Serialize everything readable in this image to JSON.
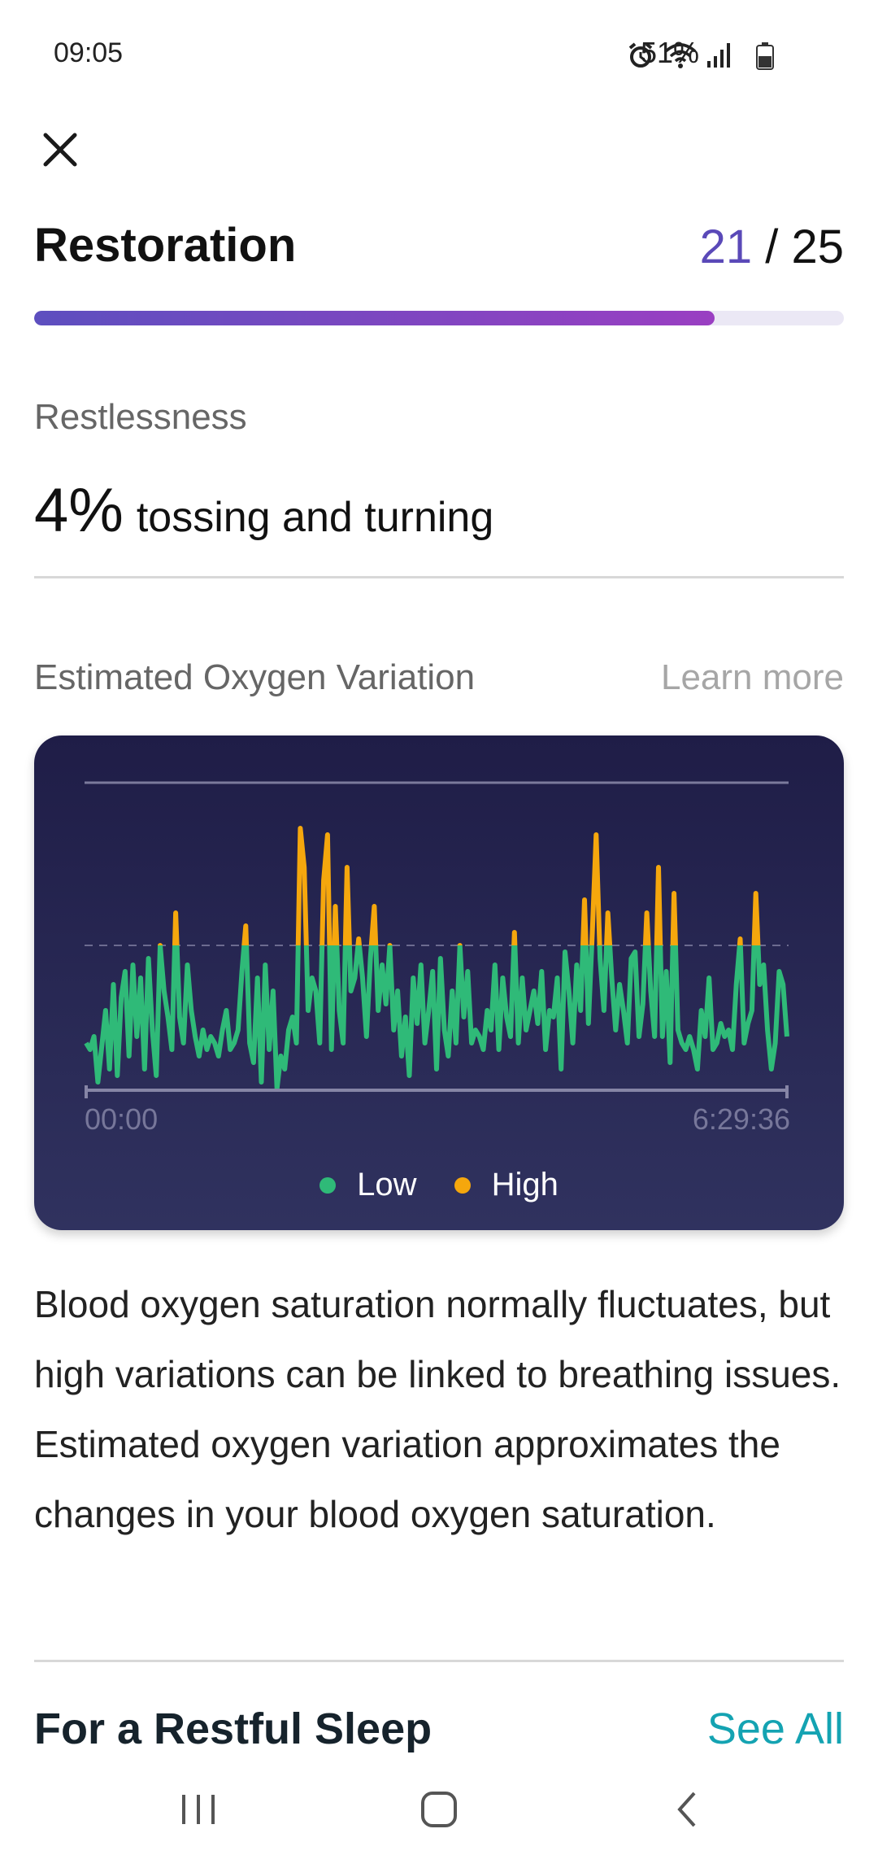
{
  "status_bar": {
    "time": "09:05",
    "battery": "51%",
    "icons": [
      "alarm-icon",
      "wifi-icon",
      "signal-icon",
      "battery-icon"
    ]
  },
  "header": {
    "title": "Restoration",
    "score": "21",
    "score_separator": " / ",
    "score_max": "25",
    "progress_fraction": 0.84
  },
  "restlessness": {
    "label": "Restlessness",
    "value": "4%",
    "description": "tossing and turning"
  },
  "oxygen": {
    "label": "Estimated Oxygen Variation",
    "learn_more": "Learn more",
    "description": "Blood oxygen saturation normally fluctuates, but high variations can be linked to breathing issues. Estimated oxygen variation approximates the changes in your blood oxygen saturation."
  },
  "chart_data": {
    "type": "line",
    "x_start_label": "00:00",
    "x_end_label": "6:29:36",
    "ylim": [
      0,
      100
    ],
    "threshold": 50,
    "legend_placement": "bottom-center",
    "series": [
      {
        "name": "Low",
        "color": "#2fba78"
      },
      {
        "name": "High",
        "color": "#f5a70d"
      }
    ],
    "values": [
      20,
      18,
      22,
      8,
      19,
      30,
      12,
      38,
      10,
      34,
      42,
      16,
      44,
      22,
      40,
      12,
      46,
      24,
      10,
      50,
      36,
      28,
      18,
      60,
      28,
      20,
      44,
      30,
      22,
      16,
      24,
      18,
      22,
      20,
      16,
      24,
      30,
      18,
      20,
      24,
      42,
      56,
      20,
      14,
      40,
      8,
      44,
      18,
      36,
      6,
      16,
      12,
      24,
      28,
      20,
      86,
      74,
      30,
      40,
      36,
      20,
      70,
      84,
      18,
      62,
      30,
      20,
      74,
      36,
      40,
      52,
      40,
      22,
      46,
      62,
      30,
      44,
      32,
      50,
      24,
      36,
      16,
      28,
      10,
      40,
      26,
      44,
      20,
      30,
      42,
      12,
      46,
      24,
      16,
      36,
      20,
      50,
      28,
      42,
      20,
      24,
      22,
      18,
      30,
      24,
      44,
      18,
      40,
      28,
      22,
      54,
      20,
      40,
      24,
      30,
      36,
      26,
      42,
      18,
      30,
      28,
      40,
      12,
      48,
      36,
      20,
      44,
      30,
      64,
      26,
      54,
      84,
      46,
      30,
      60,
      40,
      24,
      38,
      30,
      20,
      46,
      48,
      22,
      32,
      60,
      36,
      22,
      74,
      22,
      42,
      14,
      66,
      24,
      20,
      18,
      22,
      18,
      12,
      30,
      22,
      40,
      18,
      20,
      26,
      22,
      24,
      18,
      38,
      52,
      20,
      26,
      30,
      66,
      38,
      44,
      24,
      12,
      20,
      42,
      38,
      22
    ]
  },
  "section": {
    "title": "For a Restful Sleep",
    "see_all": "See All"
  },
  "nav_bar": {
    "items": [
      "recent-apps-icon",
      "home-icon",
      "back-icon"
    ]
  }
}
